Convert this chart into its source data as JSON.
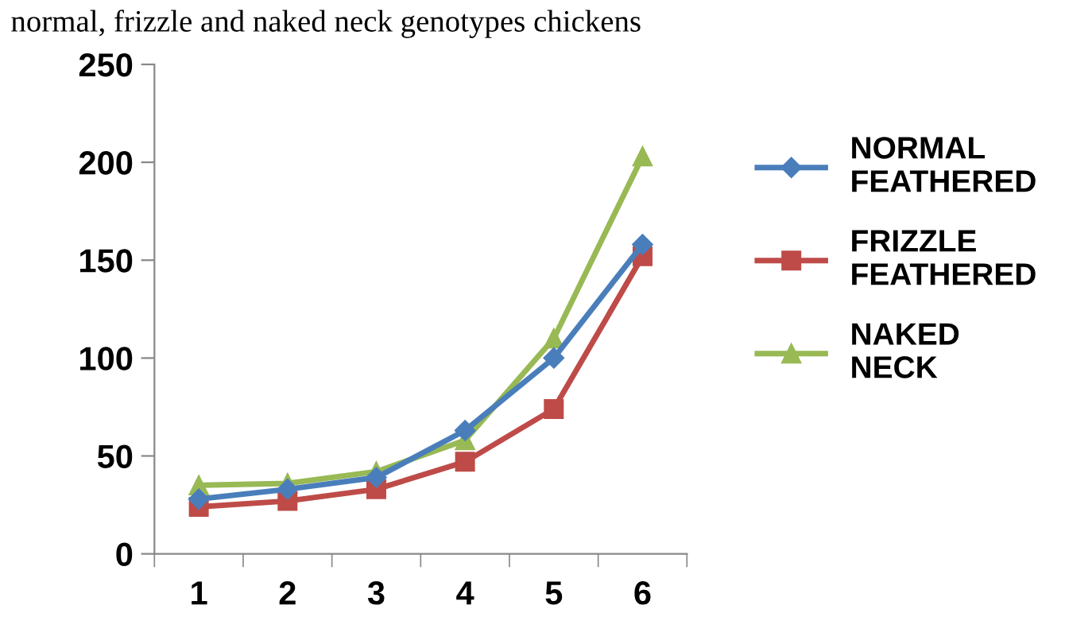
{
  "chart_data": {
    "type": "line",
    "title": "normal, frizzle and naked neck genotypes chickens",
    "categories": [
      "1",
      "2",
      "3",
      "4",
      "5",
      "6"
    ],
    "series": [
      {
        "name": "NORMAL FEATHERED",
        "color": "#4a7ebb",
        "marker": "diamond",
        "values": [
          28,
          33,
          39,
          63,
          100,
          158
        ]
      },
      {
        "name": "FRIZZLE FEATHERED",
        "color": "#be4b48",
        "marker": "square",
        "values": [
          24,
          27,
          33,
          47,
          74,
          152
        ]
      },
      {
        "name": "NAKED NECK",
        "color": "#98b954",
        "marker": "triangle",
        "values": [
          35,
          36,
          42,
          58,
          110,
          203
        ]
      }
    ],
    "ylim": [
      0,
      250
    ],
    "yticks": [
      0,
      50,
      100,
      150,
      200,
      250
    ],
    "grid": false,
    "legend": "right",
    "line_style": "solid"
  }
}
